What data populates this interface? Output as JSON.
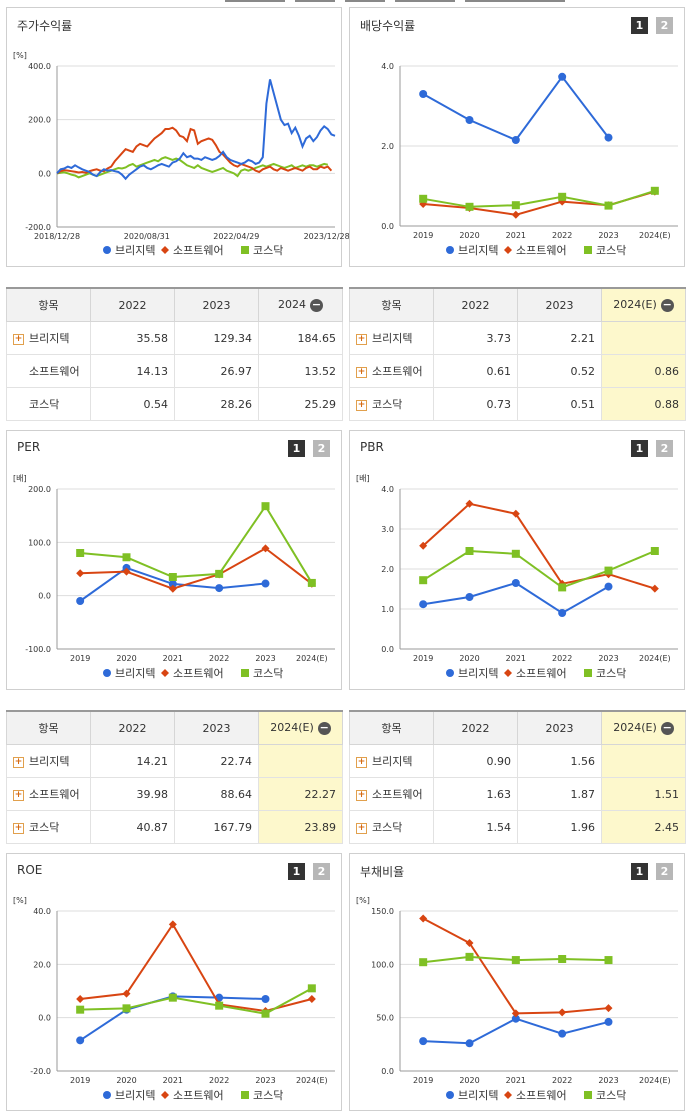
{
  "colors": {
    "bridgetech": "#2e6ad8",
    "software": "#d84512",
    "kosdaq": "#7fc024"
  },
  "legend": [
    "브리지텍",
    "소프트웨어",
    "코스닥"
  ],
  "buttons": {
    "one": "1",
    "two": "2"
  },
  "charts": [
    {
      "id": "stock",
      "title": "주가수익률",
      "unit": "[%]",
      "type": "line",
      "yticks": [
        "400.0",
        "200.0",
        "0.0",
        "-200.0"
      ],
      "ylim": [
        -200,
        400
      ],
      "xticks": [
        "2018/12/28",
        "2020/08/31",
        "2022/04/29",
        "2023/12/28"
      ],
      "x_range": [
        "2018/12/28",
        "2024/03/29"
      ],
      "grid": true,
      "series": [
        {
          "name": "브리지텍",
          "values": [
            0,
            15,
            18,
            25,
            20,
            30,
            22,
            15,
            10,
            5,
            -5,
            -10,
            5,
            15,
            10,
            12,
            8,
            5,
            -5,
            -20,
            -5,
            5,
            15,
            25,
            30,
            20,
            15,
            22,
            30,
            35,
            30,
            25,
            40,
            45,
            55,
            75,
            60,
            65,
            55,
            55,
            50,
            60,
            55,
            50,
            55,
            65,
            80,
            60,
            50,
            45,
            40,
            35,
            40,
            50,
            45,
            35,
            40,
            60,
            260,
            350,
            300,
            250,
            200,
            180,
            185,
            150,
            170,
            140,
            100,
            130,
            140,
            120,
            135,
            160,
            175,
            165,
            145,
            140
          ]
        },
        {
          "name": "소프트웨어",
          "values": [
            0,
            8,
            12,
            10,
            8,
            6,
            3,
            5,
            2,
            8,
            12,
            15,
            10,
            8,
            18,
            25,
            45,
            60,
            75,
            90,
            85,
            80,
            100,
            110,
            105,
            100,
            115,
            130,
            140,
            150,
            165,
            165,
            170,
            160,
            140,
            135,
            120,
            165,
            160,
            110,
            120,
            125,
            130,
            125,
            105,
            80,
            70,
            55,
            40,
            30,
            25,
            35,
            30,
            25,
            20,
            10,
            5,
            15,
            20,
            25,
            15,
            10,
            20,
            15,
            10,
            15,
            20,
            15,
            10,
            20,
            25,
            15,
            15,
            25,
            20,
            25,
            10
          ]
        },
        {
          "name": "코스닥",
          "values": [
            0,
            2,
            4,
            0,
            -5,
            -8,
            -15,
            -10,
            -5,
            0,
            -5,
            -10,
            -5,
            0,
            5,
            10,
            15,
            20,
            18,
            22,
            30,
            35,
            25,
            30,
            35,
            40,
            45,
            50,
            45,
            55,
            60,
            55,
            50,
            55,
            50,
            40,
            30,
            25,
            20,
            30,
            20,
            15,
            10,
            5,
            10,
            15,
            20,
            10,
            5,
            0,
            -10,
            10,
            15,
            10,
            15,
            20,
            25,
            30,
            25,
            30,
            35,
            30,
            25,
            20,
            25,
            30,
            20,
            25,
            30,
            25,
            30,
            30,
            25,
            30,
            35,
            32
          ]
        }
      ]
    },
    {
      "id": "dividend",
      "title": "배당수익률",
      "unit": "",
      "type": "line",
      "yticks": [
        "4.0",
        "2.0",
        "0.0"
      ],
      "ylim": [
        0,
        4
      ],
      "categories": [
        "2019",
        "2020",
        "2021",
        "2022",
        "2023",
        "2024(E)"
      ],
      "series": [
        {
          "name": "브리지텍",
          "values": [
            3.3,
            2.65,
            2.15,
            3.73,
            2.21,
            null
          ]
        },
        {
          "name": "소프트웨어",
          "values": [
            0.55,
            0.45,
            0.28,
            0.61,
            0.52,
            0.86
          ]
        },
        {
          "name": "코스닥",
          "values": [
            0.68,
            0.48,
            0.52,
            0.73,
            0.51,
            0.88
          ]
        }
      ]
    },
    {
      "id": "per",
      "title": "PER",
      "unit": "[배]",
      "type": "line",
      "yticks": [
        "200.0",
        "100.0",
        "0.0",
        "-100.0"
      ],
      "ylim": [
        -100,
        200
      ],
      "categories": [
        "2019",
        "2020",
        "2021",
        "2022",
        "2023",
        "2024(E)"
      ],
      "series": [
        {
          "name": "브리지텍",
          "values": [
            -10,
            52,
            22,
            14.21,
            22.74,
            null
          ]
        },
        {
          "name": "소프트웨어",
          "values": [
            42,
            45,
            13,
            39.98,
            88.64,
            22.27
          ]
        },
        {
          "name": "코스닥",
          "values": [
            80,
            72,
            35,
            40.87,
            167.79,
            23.89
          ]
        }
      ]
    },
    {
      "id": "pbr",
      "title": "PBR",
      "unit": "[배]",
      "type": "line",
      "yticks": [
        "4.0",
        "3.0",
        "2.0",
        "1.0",
        "0.0"
      ],
      "ylim": [
        0,
        4
      ],
      "categories": [
        "2019",
        "2020",
        "2021",
        "2022",
        "2023",
        "2024(E)"
      ],
      "series": [
        {
          "name": "브리지텍",
          "values": [
            1.12,
            1.3,
            1.65,
            0.9,
            1.56,
            null
          ]
        },
        {
          "name": "소프트웨어",
          "values": [
            2.58,
            3.63,
            3.38,
            1.63,
            1.87,
            1.51
          ]
        },
        {
          "name": "코스닥",
          "values": [
            1.72,
            2.45,
            2.38,
            1.54,
            1.96,
            2.45
          ]
        }
      ]
    },
    {
      "id": "roe",
      "title": "ROE",
      "unit": "[%]",
      "type": "line",
      "yticks": [
        "40.0",
        "20.0",
        "0.0",
        "-20.0"
      ],
      "ylim": [
        -20,
        40
      ],
      "categories": [
        "2019",
        "2020",
        "2021",
        "2022",
        "2023",
        "2024(E)"
      ],
      "series": [
        {
          "name": "브리지텍",
          "values": [
            -8.5,
            3,
            8,
            7.5,
            7,
            null
          ]
        },
        {
          "name": "소프트웨어",
          "values": [
            7,
            9,
            35,
            5,
            2.5,
            7
          ]
        },
        {
          "name": "코스닥",
          "values": [
            3,
            3.5,
            7.5,
            4.5,
            1.5,
            11
          ]
        }
      ]
    },
    {
      "id": "debt",
      "title": "부채비율",
      "unit": "[%]",
      "type": "line",
      "yticks": [
        "150.0",
        "100.0",
        "50.0",
        "0.0"
      ],
      "ylim": [
        0,
        150
      ],
      "categories": [
        "2019",
        "2020",
        "2021",
        "2022",
        "2023",
        "2024(E)"
      ],
      "series": [
        {
          "name": "브리지텍",
          "values": [
            28,
            26,
            49,
            35,
            46,
            null
          ]
        },
        {
          "name": "소프트웨어",
          "values": [
            143,
            120,
            54,
            55,
            59,
            null
          ]
        },
        {
          "name": "코스닥",
          "values": [
            102,
            107,
            104,
            105,
            104,
            null
          ]
        }
      ]
    }
  ],
  "tables": [
    {
      "id": "stock",
      "headers": [
        "항목",
        "2022",
        "2023",
        "2024"
      ],
      "rows": [
        {
          "name": "브리지텍",
          "plus": true,
          "values": [
            "35.58",
            "129.34",
            "184.65"
          ]
        },
        {
          "name": "소프트웨어",
          "plus": false,
          "values": [
            "14.13",
            "26.97",
            "13.52"
          ]
        },
        {
          "name": "코스닥",
          "plus": false,
          "values": [
            "0.54",
            "28.26",
            "25.29"
          ]
        }
      ],
      "highlight_last": false
    },
    {
      "id": "dividend",
      "headers": [
        "항목",
        "2022",
        "2023",
        "2024(E)"
      ],
      "rows": [
        {
          "name": "브리지텍",
          "plus": true,
          "values": [
            "3.73",
            "2.21",
            ""
          ]
        },
        {
          "name": "소프트웨어",
          "plus": true,
          "values": [
            "0.61",
            "0.52",
            "0.86"
          ]
        },
        {
          "name": "코스닥",
          "plus": true,
          "values": [
            "0.73",
            "0.51",
            "0.88"
          ]
        }
      ],
      "highlight_last": true
    },
    {
      "id": "per",
      "headers": [
        "항목",
        "2022",
        "2023",
        "2024(E)"
      ],
      "rows": [
        {
          "name": "브리지텍",
          "plus": true,
          "values": [
            "14.21",
            "22.74",
            ""
          ]
        },
        {
          "name": "소프트웨어",
          "plus": true,
          "values": [
            "39.98",
            "88.64",
            "22.27"
          ]
        },
        {
          "name": "코스닥",
          "plus": true,
          "values": [
            "40.87",
            "167.79",
            "23.89"
          ]
        }
      ],
      "highlight_last": true
    },
    {
      "id": "pbr",
      "headers": [
        "항목",
        "2022",
        "2023",
        "2024(E)"
      ],
      "rows": [
        {
          "name": "브리지텍",
          "plus": true,
          "values": [
            "0.90",
            "1.56",
            ""
          ]
        },
        {
          "name": "소프트웨어",
          "plus": true,
          "values": [
            "1.63",
            "1.87",
            "1.51"
          ]
        },
        {
          "name": "코스닥",
          "plus": true,
          "values": [
            "1.54",
            "1.96",
            "2.45"
          ]
        }
      ],
      "highlight_last": true
    }
  ]
}
